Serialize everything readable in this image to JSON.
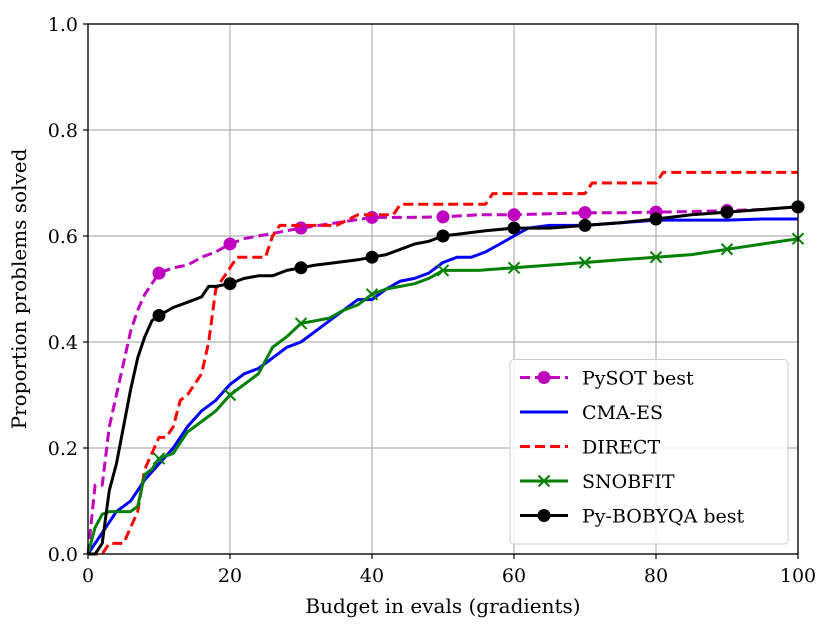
{
  "chart_data": {
    "type": "line",
    "title": "",
    "xlabel": "Budget in evals (gradients)",
    "ylabel": "Proportion problems solved",
    "xlim": [
      0,
      100
    ],
    "ylim": [
      0,
      1.0
    ],
    "xticks": [
      0,
      20,
      40,
      60,
      80,
      100
    ],
    "yticks": [
      0.0,
      0.2,
      0.4,
      0.6,
      0.8,
      1.0
    ],
    "xtick_labels": [
      "0",
      "20",
      "40",
      "60",
      "80",
      "100"
    ],
    "ytick_labels": [
      "0.0",
      "0.2",
      "0.4",
      "0.6",
      "0.8",
      "1.0"
    ],
    "grid": true,
    "legend_position": "lower-right",
    "series": [
      {
        "name": "PySOT best",
        "color": "#bf00bf",
        "dash": "dashed",
        "marker": "circle",
        "x": [
          0,
          1,
          2,
          3,
          4,
          5,
          6,
          7,
          8,
          9,
          10,
          12,
          14,
          16,
          18,
          20,
          22,
          24,
          26,
          28,
          30,
          35,
          40,
          45,
          50,
          55,
          60,
          65,
          70,
          75,
          80,
          85,
          90,
          95,
          100
        ],
        "y": [
          0.0,
          0.13,
          0.13,
          0.24,
          0.3,
          0.36,
          0.42,
          0.46,
          0.49,
          0.51,
          0.53,
          0.54,
          0.545,
          0.56,
          0.57,
          0.585,
          0.595,
          0.6,
          0.605,
          0.61,
          0.615,
          0.625,
          0.635,
          0.635,
          0.636,
          0.64,
          0.64,
          0.642,
          0.644,
          0.644,
          0.645,
          0.646,
          0.648,
          0.65,
          0.655
        ]
      },
      {
        "name": "CMA-ES",
        "color": "#0000ff",
        "dash": "solid",
        "marker": "none",
        "x": [
          0,
          2,
          4,
          6,
          8,
          10,
          12,
          14,
          16,
          18,
          20,
          22,
          24,
          26,
          28,
          30,
          32,
          34,
          36,
          38,
          40,
          42,
          44,
          46,
          48,
          50,
          52,
          54,
          56,
          58,
          60,
          62,
          65,
          70,
          75,
          80,
          85,
          90,
          95,
          100
        ],
        "y": [
          0.0,
          0.04,
          0.08,
          0.1,
          0.14,
          0.17,
          0.2,
          0.24,
          0.27,
          0.29,
          0.32,
          0.34,
          0.35,
          0.37,
          0.39,
          0.4,
          0.42,
          0.44,
          0.46,
          0.48,
          0.48,
          0.5,
          0.515,
          0.52,
          0.53,
          0.55,
          0.56,
          0.56,
          0.57,
          0.585,
          0.6,
          0.615,
          0.62,
          0.62,
          0.625,
          0.63,
          0.63,
          0.63,
          0.632,
          0.632
        ]
      },
      {
        "name": "DIRECT",
        "color": "#ff0000",
        "dash": "dashed",
        "marker": "none",
        "x": [
          0,
          2,
          3,
          5,
          7,
          8,
          9,
          10,
          11,
          12,
          13,
          14,
          16,
          17,
          18,
          20,
          21,
          23,
          25,
          26,
          27,
          30,
          35,
          38,
          40,
          43,
          44,
          50,
          56,
          57,
          70,
          71,
          80,
          81,
          100
        ],
        "y": [
          0.0,
          0.0,
          0.02,
          0.02,
          0.08,
          0.16,
          0.19,
          0.22,
          0.22,
          0.24,
          0.29,
          0.3,
          0.34,
          0.4,
          0.5,
          0.54,
          0.56,
          0.56,
          0.56,
          0.6,
          0.62,
          0.62,
          0.62,
          0.64,
          0.64,
          0.64,
          0.66,
          0.66,
          0.66,
          0.68,
          0.68,
          0.7,
          0.7,
          0.72,
          0.72
        ]
      },
      {
        "name": "SNOBFIT",
        "color": "#008000",
        "dash": "solid",
        "marker": "x",
        "x": [
          0,
          1,
          2,
          3,
          4,
          5,
          6,
          7,
          8,
          9,
          10,
          12,
          14,
          16,
          18,
          20,
          22,
          24,
          26,
          28,
          30,
          32,
          34,
          36,
          38,
          40,
          42,
          44,
          46,
          48,
          50,
          55,
          60,
          65,
          70,
          75,
          80,
          85,
          90,
          95,
          100
        ],
        "y": [
          0.0,
          0.05,
          0.075,
          0.08,
          0.08,
          0.08,
          0.08,
          0.09,
          0.15,
          0.16,
          0.18,
          0.19,
          0.23,
          0.25,
          0.27,
          0.3,
          0.32,
          0.34,
          0.39,
          0.41,
          0.435,
          0.44,
          0.445,
          0.46,
          0.47,
          0.49,
          0.5,
          0.505,
          0.51,
          0.52,
          0.535,
          0.535,
          0.54,
          0.545,
          0.55,
          0.555,
          0.56,
          0.565,
          0.575,
          0.585,
          0.595
        ]
      },
      {
        "name": "Py-BOBYQA best",
        "color": "#000000",
        "dash": "solid",
        "marker": "circle",
        "x": [
          0,
          1,
          2,
          3,
          4,
          5,
          6,
          7,
          8,
          9,
          10,
          12,
          14,
          16,
          17,
          18,
          20,
          22,
          24,
          26,
          28,
          30,
          32,
          35,
          38,
          40,
          42,
          44,
          46,
          48,
          50,
          53,
          56,
          60,
          65,
          70,
          75,
          80,
          85,
          90,
          95,
          100
        ],
        "y": [
          0.0,
          0.0,
          0.02,
          0.12,
          0.17,
          0.24,
          0.31,
          0.37,
          0.41,
          0.44,
          0.45,
          0.465,
          0.475,
          0.485,
          0.505,
          0.505,
          0.51,
          0.52,
          0.525,
          0.525,
          0.535,
          0.54,
          0.545,
          0.55,
          0.555,
          0.56,
          0.565,
          0.575,
          0.585,
          0.59,
          0.6,
          0.605,
          0.61,
          0.615,
          0.615,
          0.62,
          0.625,
          0.632,
          0.64,
          0.645,
          0.65,
          0.655
        ]
      }
    ]
  }
}
